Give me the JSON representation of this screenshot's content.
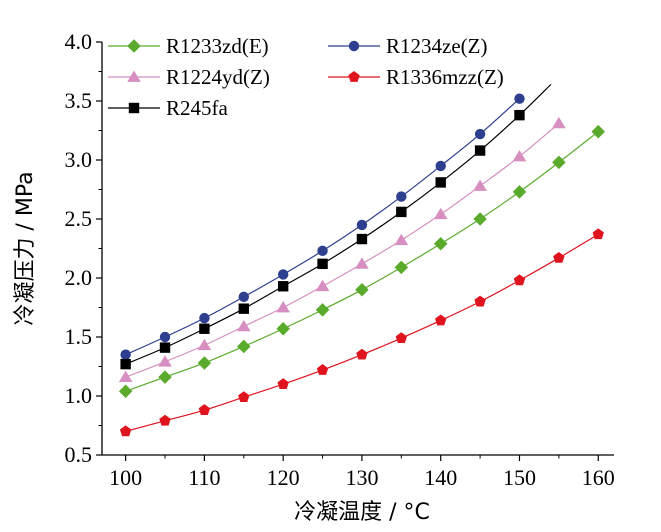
{
  "chart_data": {
    "type": "line",
    "xlabel": "冷凝温度  / °C",
    "ylabel": "冷凝压力 / MPa",
    "xlim": [
      97,
      162
    ],
    "ylim": [
      0.5,
      4.0
    ],
    "x_ticks": [
      "100",
      "110",
      "120",
      "130",
      "140",
      "150",
      "160"
    ],
    "x_tick_values": [
      100,
      110,
      120,
      130,
      140,
      150,
      160
    ],
    "y_ticks": [
      "0.5",
      "1.0",
      "1.5",
      "2.0",
      "2.5",
      "3.0",
      "3.5",
      "4.0"
    ],
    "y_tick_values": [
      0.5,
      1.0,
      1.5,
      2.0,
      2.5,
      3.0,
      3.5,
      4.0
    ],
    "grid": false,
    "legend_position": "top-left",
    "series": [
      {
        "name": "R1233zd(E)",
        "color": "#5aab2c",
        "marker": "diamond",
        "x": [
          100,
          105,
          110,
          115,
          120,
          125,
          130,
          135,
          140,
          145,
          150,
          155,
          160
        ],
        "y": [
          1.04,
          1.16,
          1.28,
          1.42,
          1.57,
          1.73,
          1.9,
          2.09,
          2.29,
          2.5,
          2.73,
          2.98,
          3.24
        ],
        "curve_to": 160
      },
      {
        "name": "R1234ze(Z)",
        "color": "#2e3f8f",
        "marker": "circle",
        "x": [
          100,
          105,
          110,
          115,
          120,
          125,
          130,
          135,
          140,
          145,
          150
        ],
        "y": [
          1.35,
          1.5,
          1.66,
          1.84,
          2.03,
          2.23,
          2.45,
          2.69,
          2.95,
          3.22,
          3.52
        ],
        "curve_to": 150
      },
      {
        "name": "R1224yd(Z)",
        "color": "#d68fc0",
        "marker": "triangle",
        "x": [
          100,
          105,
          110,
          115,
          120,
          125,
          130,
          135,
          140,
          145,
          150,
          155
        ],
        "y": [
          1.16,
          1.29,
          1.43,
          1.59,
          1.75,
          1.93,
          2.12,
          2.32,
          2.54,
          2.78,
          3.03,
          3.31
        ],
        "curve_to": 155
      },
      {
        "name": "R1336mzz(Z)",
        "color": "#e0141e",
        "marker": "pentagon",
        "x": [
          100,
          105,
          110,
          115,
          120,
          125,
          130,
          135,
          140,
          145,
          150,
          155,
          160
        ],
        "y": [
          0.7,
          0.79,
          0.88,
          0.99,
          1.1,
          1.22,
          1.35,
          1.49,
          1.64,
          1.8,
          1.98,
          2.17,
          2.37
        ],
        "curve_to": 160
      },
      {
        "name": "R245fa",
        "color": "#000000",
        "marker": "square",
        "x": [
          100,
          105,
          110,
          115,
          120,
          125,
          130,
          135,
          140,
          145,
          150
        ],
        "y": [
          1.27,
          1.41,
          1.57,
          1.74,
          1.93,
          2.12,
          2.33,
          2.56,
          2.81,
          3.08,
          3.38
        ],
        "curve_to": 154
      }
    ]
  }
}
